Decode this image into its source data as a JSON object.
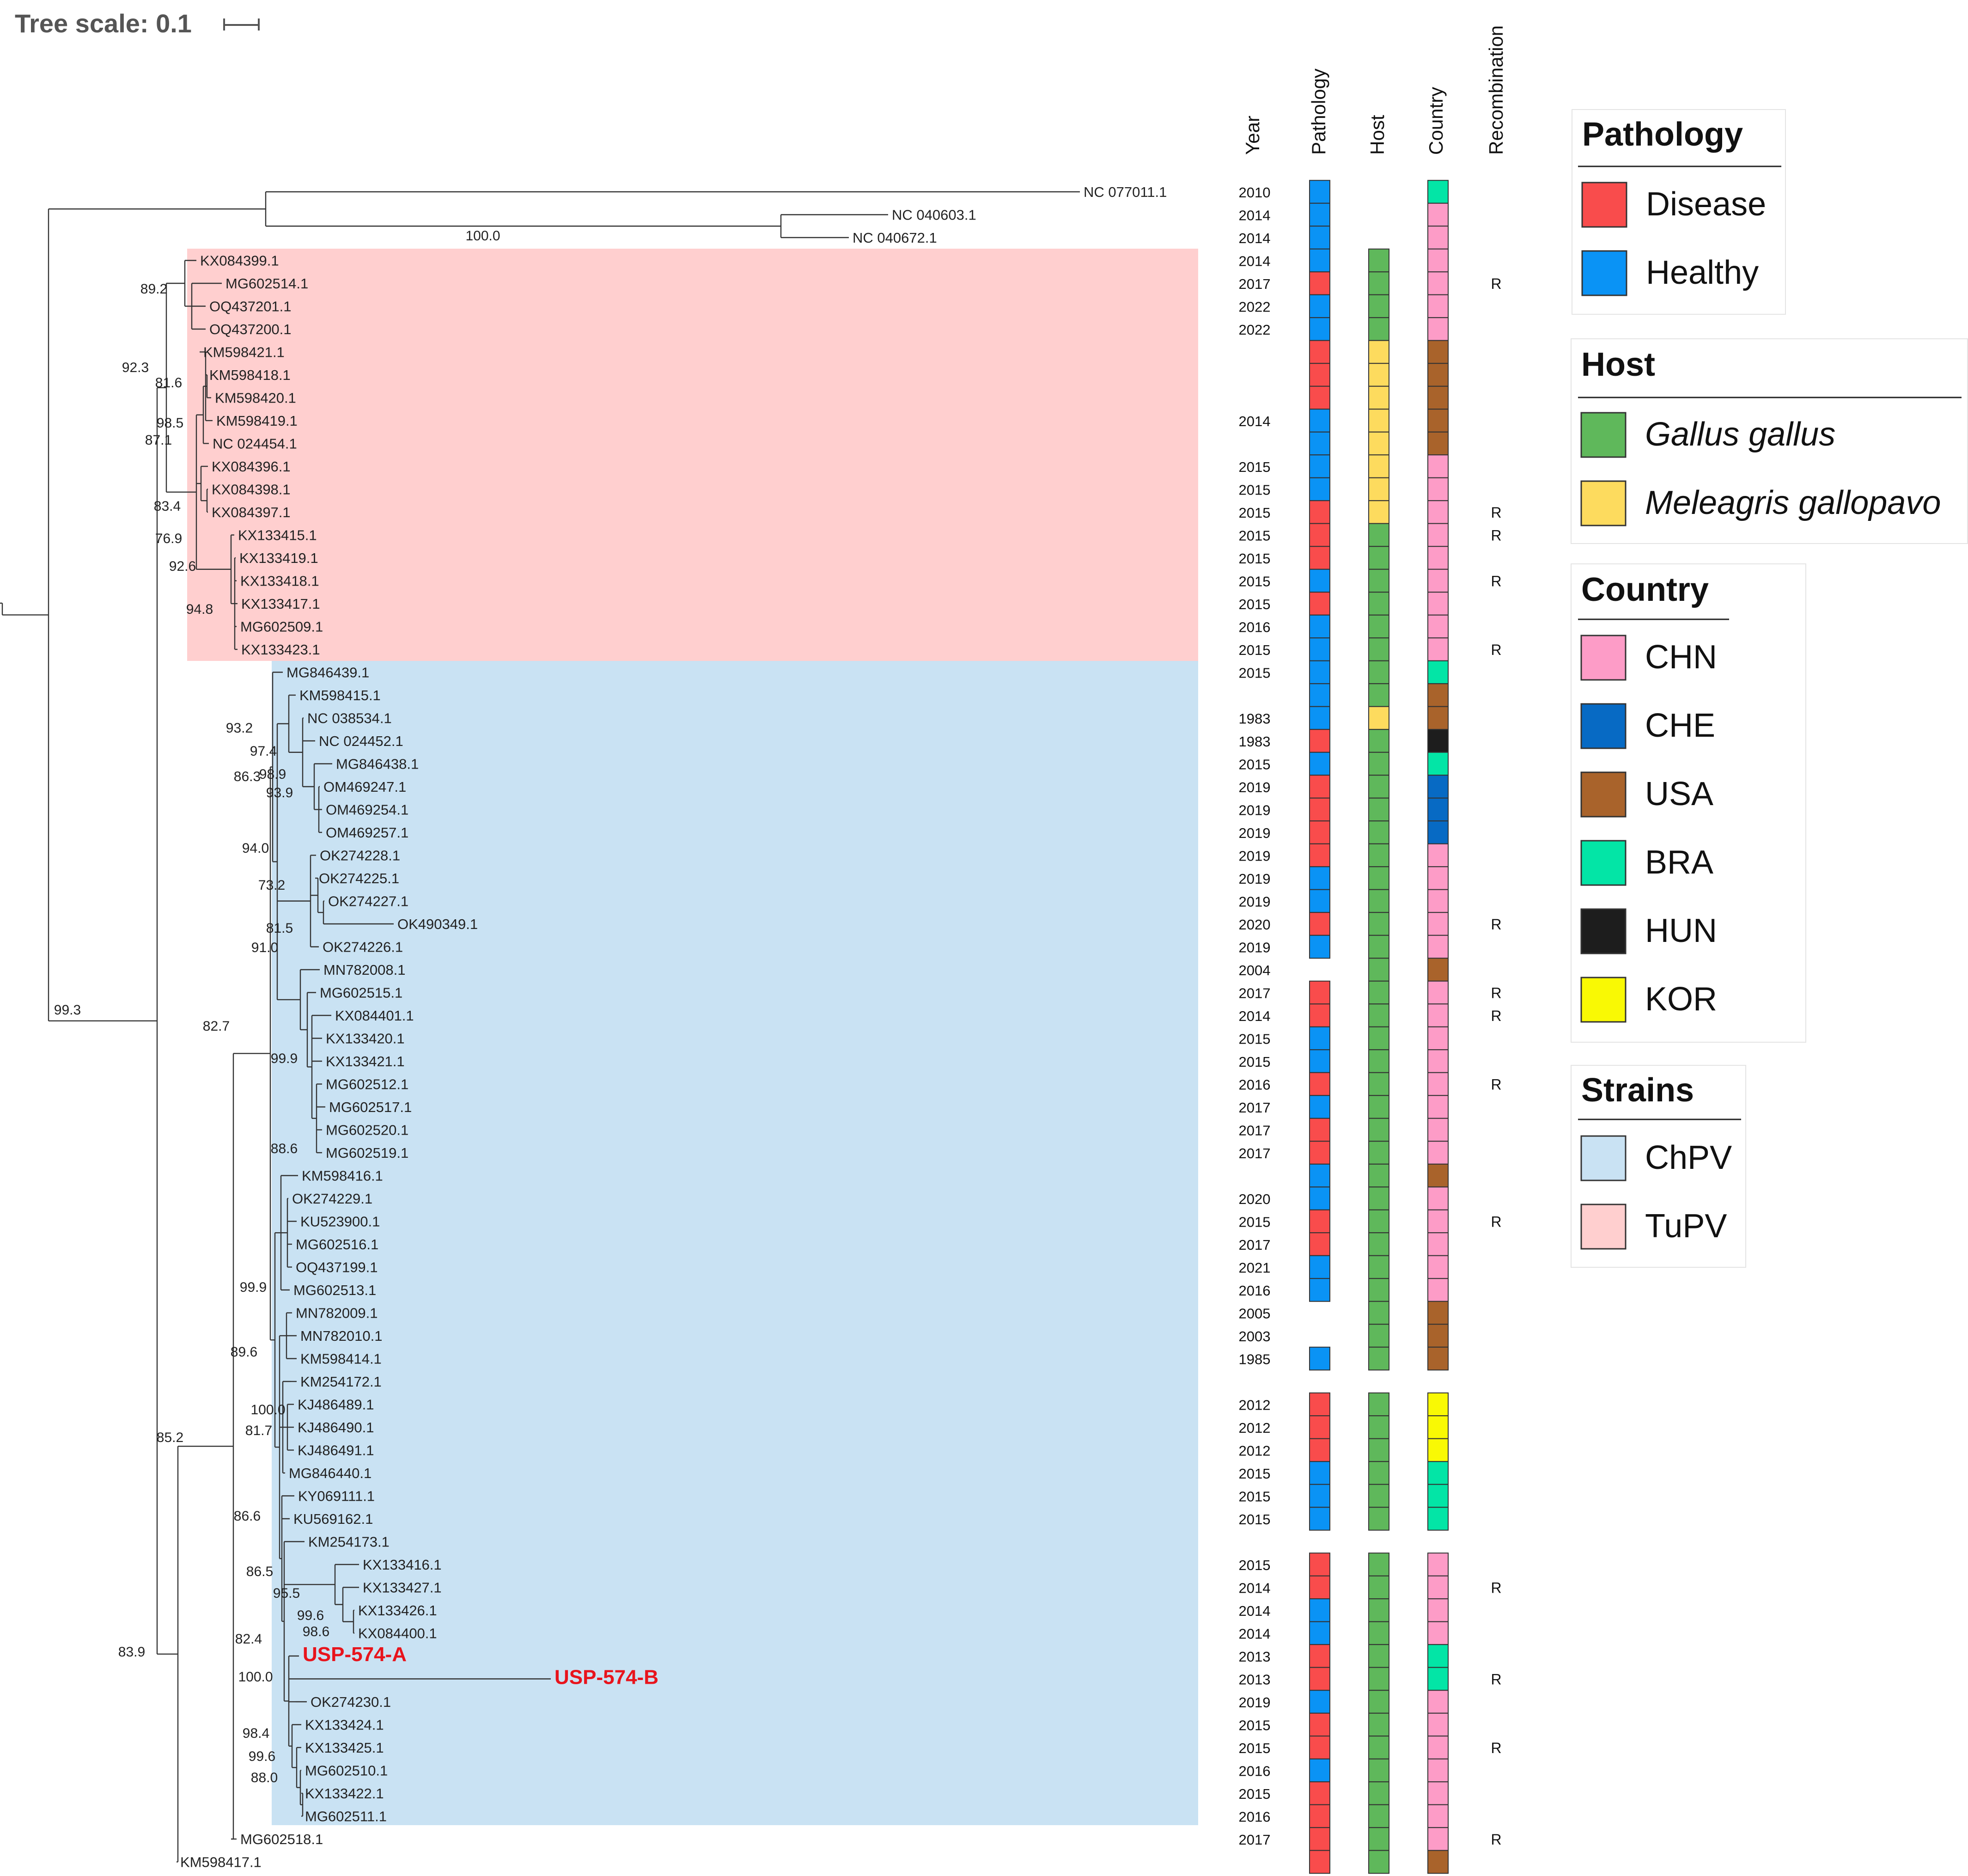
{
  "header": {
    "tree_scale_label": "Tree scale: 0.1"
  },
  "columns": {
    "year": "Year",
    "pathology": "Pathology",
    "host": "Host",
    "country": "Country",
    "recombination": "Recombination"
  },
  "clades": [
    {
      "label": "TuPV",
      "color": "#ffcfcf"
    },
    {
      "label": "ChPV",
      "color": "#c9e2f3"
    }
  ],
  "branch_supports": [
    "100.0",
    "89.2",
    "92.3",
    "81.6",
    "98.5",
    "87.1",
    "83.4",
    "76.9",
    "92.6",
    "94.8",
    "93.2",
    "97.4",
    "98.9",
    "86.3",
    "93.9",
    "94.0",
    "73.2",
    "81.5",
    "91.0",
    "99.9",
    "82.7",
    "88.6",
    "99.9",
    "89.6",
    "100.0",
    "81.7",
    "85.2",
    "86.6",
    "86.5",
    "95.5",
    "99.6",
    "98.6",
    "82.4",
    "100.0",
    "98.4",
    "99.6",
    "88.0",
    "99.3",
    "83.9"
  ],
  "taxa": [
    {
      "name": "NC 077011.1",
      "year": "2010",
      "pathology": "Healthy",
      "host": "",
      "country": "BRA",
      "recombination": ""
    },
    {
      "name": "NC 040603.1",
      "year": "2014",
      "pathology": "Healthy",
      "host": "",
      "country": "CHN",
      "recombination": ""
    },
    {
      "name": "NC 040672.1",
      "year": "2014",
      "pathology": "Healthy",
      "host": "",
      "country": "CHN",
      "recombination": ""
    },
    {
      "name": "KX084399.1",
      "year": "2014",
      "pathology": "Healthy",
      "host": "Gallus gallus",
      "country": "CHN",
      "recombination": ""
    },
    {
      "name": "MG602514.1",
      "year": "2017",
      "pathology": "Disease",
      "host": "Gallus gallus",
      "country": "CHN",
      "recombination": "R"
    },
    {
      "name": "OQ437201.1",
      "year": "2022",
      "pathology": "Healthy",
      "host": "Gallus gallus",
      "country": "CHN",
      "recombination": ""
    },
    {
      "name": "OQ437200.1",
      "year": "2022",
      "pathology": "Healthy",
      "host": "Gallus gallus",
      "country": "CHN",
      "recombination": ""
    },
    {
      "name": "KM598421.1",
      "year": "",
      "pathology": "Disease",
      "host": "Meleagris gallopavo",
      "country": "USA",
      "recombination": ""
    },
    {
      "name": "KM598418.1",
      "year": "",
      "pathology": "Disease",
      "host": "Meleagris gallopavo",
      "country": "USA",
      "recombination": ""
    },
    {
      "name": "KM598420.1",
      "year": "",
      "pathology": "Disease",
      "host": "Meleagris gallopavo",
      "country": "USA",
      "recombination": ""
    },
    {
      "name": "KM598419.1",
      "year": "2014",
      "pathology": "Healthy",
      "host": "Meleagris gallopavo",
      "country": "USA",
      "recombination": ""
    },
    {
      "name": "NC 024454.1",
      "year": "",
      "pathology": "Healthy",
      "host": "Meleagris gallopavo",
      "country": "USA",
      "recombination": ""
    },
    {
      "name": "KX084396.1",
      "year": "2015",
      "pathology": "Healthy",
      "host": "Meleagris gallopavo",
      "country": "CHN",
      "recombination": ""
    },
    {
      "name": "KX084398.1",
      "year": "2015",
      "pathology": "Healthy",
      "host": "Meleagris gallopavo",
      "country": "CHN",
      "recombination": ""
    },
    {
      "name": "KX084397.1",
      "year": "2015",
      "pathology": "Disease",
      "host": "Meleagris gallopavo",
      "country": "CHN",
      "recombination": "R"
    },
    {
      "name": "KX133415.1",
      "year": "2015",
      "pathology": "Disease",
      "host": "Gallus gallus",
      "country": "CHN",
      "recombination": "R"
    },
    {
      "name": "KX133419.1",
      "year": "2015",
      "pathology": "Disease",
      "host": "Gallus gallus",
      "country": "CHN",
      "recombination": ""
    },
    {
      "name": "KX133418.1",
      "year": "2015",
      "pathology": "Healthy",
      "host": "Gallus gallus",
      "country": "CHN",
      "recombination": "R"
    },
    {
      "name": "KX133417.1",
      "year": "2015",
      "pathology": "Disease",
      "host": "Gallus gallus",
      "country": "CHN",
      "recombination": ""
    },
    {
      "name": "MG602509.1",
      "year": "2016",
      "pathology": "Healthy",
      "host": "Gallus gallus",
      "country": "CHN",
      "recombination": ""
    },
    {
      "name": "KX133423.1",
      "year": "2015",
      "pathology": "Healthy",
      "host": "Gallus gallus",
      "country": "CHN",
      "recombination": "R"
    },
    {
      "name": "MG846439.1",
      "year": "2015",
      "pathology": "Healthy",
      "host": "Gallus gallus",
      "country": "BRA",
      "recombination": ""
    },
    {
      "name": "KM598415.1",
      "year": "",
      "pathology": "Healthy",
      "host": "Gallus gallus",
      "country": "USA",
      "recombination": ""
    },
    {
      "name": "NC 038534.1",
      "year": "1983",
      "pathology": "Healthy",
      "host": "Meleagris gallopavo",
      "country": "USA",
      "recombination": ""
    },
    {
      "name": "NC 024452.1",
      "year": "1983",
      "pathology": "Disease",
      "host": "Gallus gallus",
      "country": "HUN",
      "recombination": ""
    },
    {
      "name": "MG846438.1",
      "year": "2015",
      "pathology": "Healthy",
      "host": "Gallus gallus",
      "country": "BRA",
      "recombination": ""
    },
    {
      "name": "OM469247.1",
      "year": "2019",
      "pathology": "Disease",
      "host": "Gallus gallus",
      "country": "CHE",
      "recombination": ""
    },
    {
      "name": "OM469254.1",
      "year": "2019",
      "pathology": "Disease",
      "host": "Gallus gallus",
      "country": "CHE",
      "recombination": ""
    },
    {
      "name": "OM469257.1",
      "year": "2019",
      "pathology": "Disease",
      "host": "Gallus gallus",
      "country": "CHE",
      "recombination": ""
    },
    {
      "name": "OK274228.1",
      "year": "2019",
      "pathology": "Disease",
      "host": "Gallus gallus",
      "country": "CHN",
      "recombination": ""
    },
    {
      "name": "OK274225.1",
      "year": "2019",
      "pathology": "Healthy",
      "host": "Gallus gallus",
      "country": "CHN",
      "recombination": ""
    },
    {
      "name": "OK274227.1",
      "year": "2019",
      "pathology": "Healthy",
      "host": "Gallus gallus",
      "country": "CHN",
      "recombination": ""
    },
    {
      "name": "OK490349.1",
      "year": "2020",
      "pathology": "Disease",
      "host": "Gallus gallus",
      "country": "CHN",
      "recombination": "R"
    },
    {
      "name": "OK274226.1",
      "year": "2019",
      "pathology": "Healthy",
      "host": "Gallus gallus",
      "country": "CHN",
      "recombination": ""
    },
    {
      "name": "MN782008.1",
      "year": "2004",
      "pathology": "",
      "host": "Gallus gallus",
      "country": "USA",
      "recombination": ""
    },
    {
      "name": "MG602515.1",
      "year": "2017",
      "pathology": "Disease",
      "host": "Gallus gallus",
      "country": "CHN",
      "recombination": "R"
    },
    {
      "name": "KX084401.1",
      "year": "2014",
      "pathology": "Disease",
      "host": "Gallus gallus",
      "country": "CHN",
      "recombination": "R"
    },
    {
      "name": "KX133420.1",
      "year": "2015",
      "pathology": "Healthy",
      "host": "Gallus gallus",
      "country": "CHN",
      "recombination": ""
    },
    {
      "name": "KX133421.1",
      "year": "2015",
      "pathology": "Healthy",
      "host": "Gallus gallus",
      "country": "CHN",
      "recombination": ""
    },
    {
      "name": "MG602512.1",
      "year": "2016",
      "pathology": "Disease",
      "host": "Gallus gallus",
      "country": "CHN",
      "recombination": "R"
    },
    {
      "name": "MG602517.1",
      "year": "2017",
      "pathology": "Healthy",
      "host": "Gallus gallus",
      "country": "CHN",
      "recombination": ""
    },
    {
      "name": "MG602520.1",
      "year": "2017",
      "pathology": "Disease",
      "host": "Gallus gallus",
      "country": "CHN",
      "recombination": ""
    },
    {
      "name": "MG602519.1",
      "year": "2017",
      "pathology": "Disease",
      "host": "Gallus gallus",
      "country": "CHN",
      "recombination": ""
    },
    {
      "name": "KM598416.1",
      "year": "",
      "pathology": "Healthy",
      "host": "Gallus gallus",
      "country": "USA",
      "recombination": ""
    },
    {
      "name": "OK274229.1",
      "year": "2020",
      "pathology": "Healthy",
      "host": "Gallus gallus",
      "country": "CHN",
      "recombination": ""
    },
    {
      "name": "KU523900.1",
      "year": "2015",
      "pathology": "Disease",
      "host": "Gallus gallus",
      "country": "CHN",
      "recombination": "R"
    },
    {
      "name": "MG602516.1",
      "year": "2017",
      "pathology": "Disease",
      "host": "Gallus gallus",
      "country": "CHN",
      "recombination": ""
    },
    {
      "name": "OQ437199.1",
      "year": "2021",
      "pathology": "Healthy",
      "host": "Gallus gallus",
      "country": "CHN",
      "recombination": ""
    },
    {
      "name": "MG602513.1",
      "year": "2016",
      "pathology": "Healthy",
      "host": "Gallus gallus",
      "country": "CHN",
      "recombination": ""
    },
    {
      "name": "MN782009.1",
      "year": "2005",
      "pathology": "",
      "host": "Gallus gallus",
      "country": "USA",
      "recombination": ""
    },
    {
      "name": "MN782010.1",
      "year": "2003",
      "pathology": "",
      "host": "Gallus gallus",
      "country": "USA",
      "recombination": ""
    },
    {
      "name": "KM598414.1",
      "year": "1985",
      "pathology": "Healthy",
      "host": "Gallus gallus",
      "country": "USA",
      "recombination": ""
    },
    {
      "name": "KM254172.1",
      "year": "",
      "pathology": "",
      "host": "",
      "country": "",
      "recombination": ""
    },
    {
      "name": "KJ486489.1",
      "year": "2012",
      "pathology": "Disease",
      "host": "Gallus gallus",
      "country": "KOR",
      "recombination": ""
    },
    {
      "name": "KJ486490.1",
      "year": "2012",
      "pathology": "Disease",
      "host": "Gallus gallus",
      "country": "KOR",
      "recombination": ""
    },
    {
      "name": "KJ486491.1",
      "year": "2012",
      "pathology": "Disease",
      "host": "Gallus gallus",
      "country": "KOR",
      "recombination": ""
    },
    {
      "name": "MG846440.1",
      "year": "2015",
      "pathology": "Healthy",
      "host": "Gallus gallus",
      "country": "BRA",
      "recombination": ""
    },
    {
      "name": "KY069111.1",
      "year": "2015",
      "pathology": "Healthy",
      "host": "Gallus gallus",
      "country": "BRA",
      "recombination": ""
    },
    {
      "name": "KU569162.1",
      "year": "2015",
      "pathology": "Healthy",
      "host": "Gallus gallus",
      "country": "BRA",
      "recombination": ""
    },
    {
      "name": "KM254173.1",
      "year": "",
      "pathology": "",
      "host": "",
      "country": "",
      "recombination": ""
    },
    {
      "name": "KX133416.1",
      "year": "2015",
      "pathology": "Disease",
      "host": "Gallus gallus",
      "country": "CHN",
      "recombination": ""
    },
    {
      "name": "KX133427.1",
      "year": "2014",
      "pathology": "Disease",
      "host": "Gallus gallus",
      "country": "CHN",
      "recombination": "R"
    },
    {
      "name": "KX133426.1",
      "year": "2014",
      "pathology": "Healthy",
      "host": "Gallus gallus",
      "country": "CHN",
      "recombination": ""
    },
    {
      "name": "KX084400.1",
      "year": "2014",
      "pathology": "Healthy",
      "host": "Gallus gallus",
      "country": "CHN",
      "recombination": ""
    },
    {
      "name": "USP-574-A",
      "year": "2013",
      "pathology": "Disease",
      "host": "Gallus gallus",
      "country": "BRA",
      "recombination": "",
      "highlight": true
    },
    {
      "name": "USP-574-B",
      "year": "2013",
      "pathology": "Disease",
      "host": "Gallus gallus",
      "country": "BRA",
      "recombination": "R",
      "highlight": true
    },
    {
      "name": "OK274230.1",
      "year": "2019",
      "pathology": "Healthy",
      "host": "Gallus gallus",
      "country": "CHN",
      "recombination": ""
    },
    {
      "name": "KX133424.1",
      "year": "2015",
      "pathology": "Disease",
      "host": "Gallus gallus",
      "country": "CHN",
      "recombination": ""
    },
    {
      "name": "KX133425.1",
      "year": "2015",
      "pathology": "Disease",
      "host": "Gallus gallus",
      "country": "CHN",
      "recombination": "R"
    },
    {
      "name": "MG602510.1",
      "year": "2016",
      "pathology": "Healthy",
      "host": "Gallus gallus",
      "country": "CHN",
      "recombination": ""
    },
    {
      "name": "KX133422.1",
      "year": "2015",
      "pathology": "Disease",
      "host": "Gallus gallus",
      "country": "CHN",
      "recombination": ""
    },
    {
      "name": "MG602511.1",
      "year": "2016",
      "pathology": "Disease",
      "host": "Gallus gallus",
      "country": "CHN",
      "recombination": ""
    },
    {
      "name": "MG602518.1",
      "year": "2017",
      "pathology": "Disease",
      "host": "Gallus gallus",
      "country": "CHN",
      "recombination": "R"
    },
    {
      "name": "KM598417.1",
      "year": "",
      "pathology": "Disease",
      "host": "Gallus gallus",
      "country": "USA",
      "recombination": ""
    }
  ],
  "legend": {
    "pathology": {
      "title": "Pathology",
      "items": [
        {
          "label": "Disease",
          "color": "#f94c4c"
        },
        {
          "label": "Healthy",
          "color": "#0a93f5"
        }
      ]
    },
    "host": {
      "title": "Host",
      "items": [
        {
          "label": "Gallus gallus",
          "color": "#5fb85b"
        },
        {
          "label": "Meleagris gallopavo",
          "color": "#fddb5e"
        }
      ]
    },
    "country": {
      "title": "Country",
      "items": [
        {
          "label": "CHN",
          "color": "#fd9cc7"
        },
        {
          "label": "CHE",
          "color": "#076ac4"
        },
        {
          "label": "USA",
          "color": "#a9632b"
        },
        {
          "label": "BRA",
          "color": "#03e5a6"
        },
        {
          "label": "HUN",
          "color": "#1d1d1d"
        },
        {
          "label": "KOR",
          "color": "#f9f904"
        }
      ]
    },
    "strains": {
      "title": "Strains",
      "items": [
        {
          "label": "ChPV",
          "color": "#c9e2f3"
        },
        {
          "label": "TuPV",
          "color": "#ffcfcf"
        }
      ]
    }
  }
}
